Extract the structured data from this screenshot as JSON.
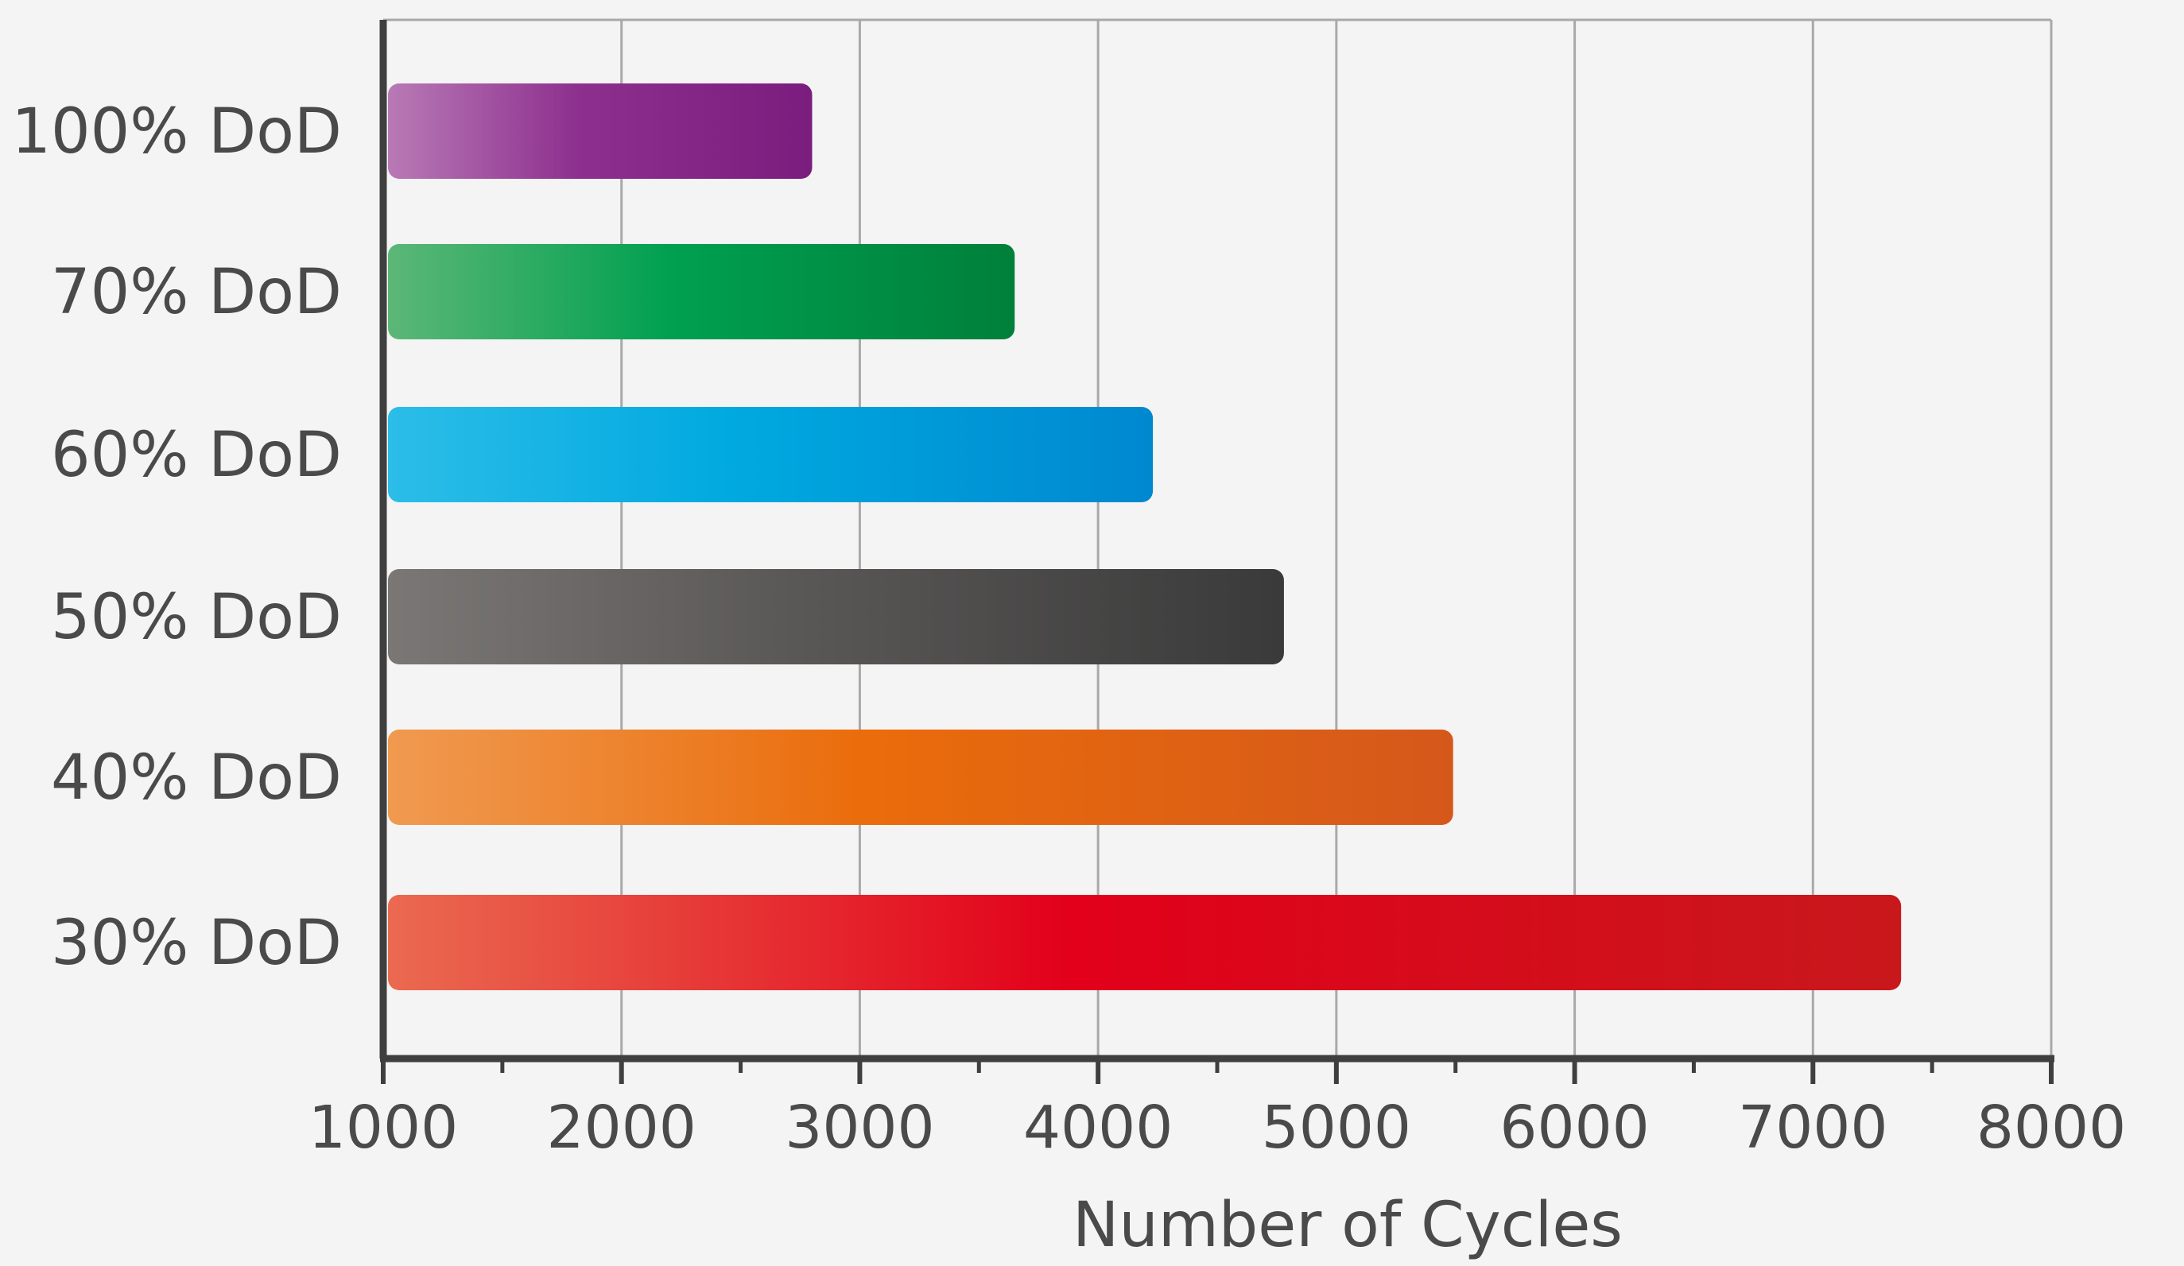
{
  "chart_data": {
    "type": "bar",
    "orientation": "horizontal",
    "title": "",
    "xlabel": "Number of Cycles",
    "ylabel": "",
    "categories": [
      "100% DoD",
      "70% DoD",
      "60% DoD",
      "50% DoD",
      "40% DoD",
      "30% DoD"
    ],
    "values": [
      2800,
      3650,
      4230,
      4780,
      5490,
      7370
    ],
    "xlim": [
      1000,
      8000
    ],
    "x_ticks": [
      1000,
      2000,
      3000,
      4000,
      5000,
      6000,
      7000,
      8000
    ],
    "x_tick_labels": [
      "1000",
      "2000",
      "3000",
      "4000",
      "5000",
      "6000",
      "7000",
      "8000"
    ],
    "grid": "vertical",
    "legend": "none",
    "bar_gradients": [
      [
        "#b87ab5",
        "#8d2f8e",
        "#7a1d7e"
      ],
      [
        "#5cb777",
        "#00a050",
        "#00803a"
      ],
      [
        "#2cbde8",
        "#00a9e0",
        "#0088cf"
      ],
      [
        "#7a7775",
        "#5a5857",
        "#3a3a3a"
      ],
      [
        "#f09a50",
        "#ea6c0b",
        "#d5581b"
      ],
      [
        "#ea6a50",
        "#e2001a",
        "#c8181c"
      ]
    ],
    "colors": {
      "background": "#f4f4f4",
      "axis": "#3f3f3f",
      "grid": "#a9a9a9",
      "text": "#4a4a4a"
    }
  }
}
